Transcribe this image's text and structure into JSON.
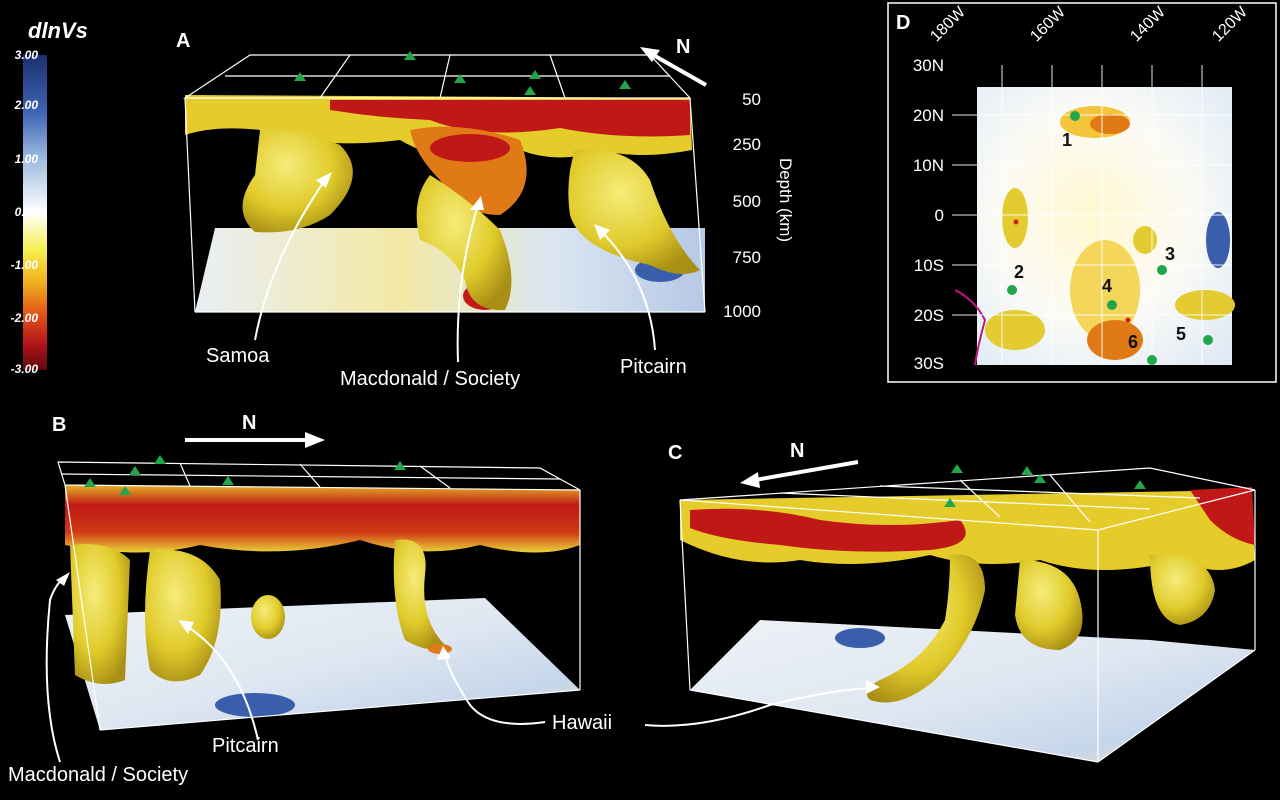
{
  "colorbar": {
    "title": "dlnVs",
    "ticks": [
      "3.00",
      "2.00",
      "1.00",
      "0.00",
      "-1.00",
      "-2.00",
      "-3.00"
    ]
  },
  "panel_a": {
    "label": "A",
    "north": "N",
    "depth_ticks": [
      "50",
      "250",
      "500",
      "750",
      "1000"
    ],
    "depth_axis": "Depth (km)",
    "annotations": [
      "Samoa",
      "Macdonald / Society",
      "Pitcairn"
    ]
  },
  "panel_b": {
    "label": "B",
    "north": "N",
    "annotations": [
      "Pitcairn",
      "Macdonald / Society"
    ]
  },
  "panel_c": {
    "label": "C",
    "north": "N"
  },
  "hawaii_label": "Hawaii",
  "panel_d": {
    "label": "D",
    "lon_ticks": [
      "180W",
      "160W",
      "140W",
      "120W"
    ],
    "lat_ticks": [
      "30N",
      "20N",
      "10N",
      "0",
      "10S",
      "20S",
      "30S"
    ],
    "hotspots": [
      "1",
      "2",
      "3",
      "4",
      "5",
      "6"
    ]
  },
  "colors": {
    "background": "#000000",
    "yellow": "#e6d42a",
    "orange": "#e07a16",
    "red": "#b81512",
    "blue": "#3a5eab",
    "hotspot": "#22a64a"
  }
}
